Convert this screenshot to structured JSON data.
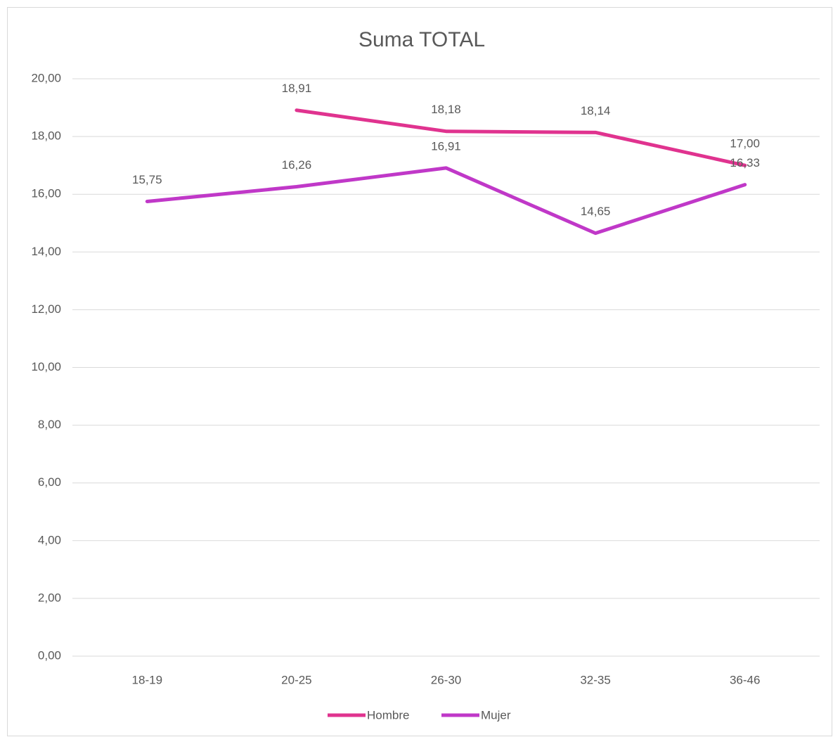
{
  "chart_data": {
    "type": "line",
    "title": "Suma TOTAL",
    "categories": [
      "18-19",
      "20-25",
      "26-30",
      "32-35",
      "36-46"
    ],
    "series": [
      {
        "name": "Hombre",
        "color": "#e0338f",
        "values": [
          null,
          18.91,
          18.18,
          18.14,
          17.0
        ],
        "value_labels": [
          null,
          "18,91",
          "18,18",
          "18,14",
          "17,00"
        ]
      },
      {
        "name": "Mujer",
        "color": "#c038c8",
        "values": [
          15.75,
          16.26,
          16.91,
          14.65,
          16.33
        ],
        "value_labels": [
          "15,75",
          "16,26",
          "16,91",
          "14,65",
          "16,33"
        ]
      }
    ],
    "ylim": [
      0,
      20
    ],
    "yticks": [
      {
        "value": 0,
        "label": "0,00"
      },
      {
        "value": 2,
        "label": "2,00"
      },
      {
        "value": 4,
        "label": "4,00"
      },
      {
        "value": 6,
        "label": "6,00"
      },
      {
        "value": 8,
        "label": "8,00"
      },
      {
        "value": 10,
        "label": "10,00"
      },
      {
        "value": 12,
        "label": "12,00"
      },
      {
        "value": 14,
        "label": "14,00"
      },
      {
        "value": 16,
        "label": "16,00"
      },
      {
        "value": 18,
        "label": "18,00"
      },
      {
        "value": 20,
        "label": "20,00"
      }
    ],
    "grid": true,
    "legend": "bottom"
  }
}
